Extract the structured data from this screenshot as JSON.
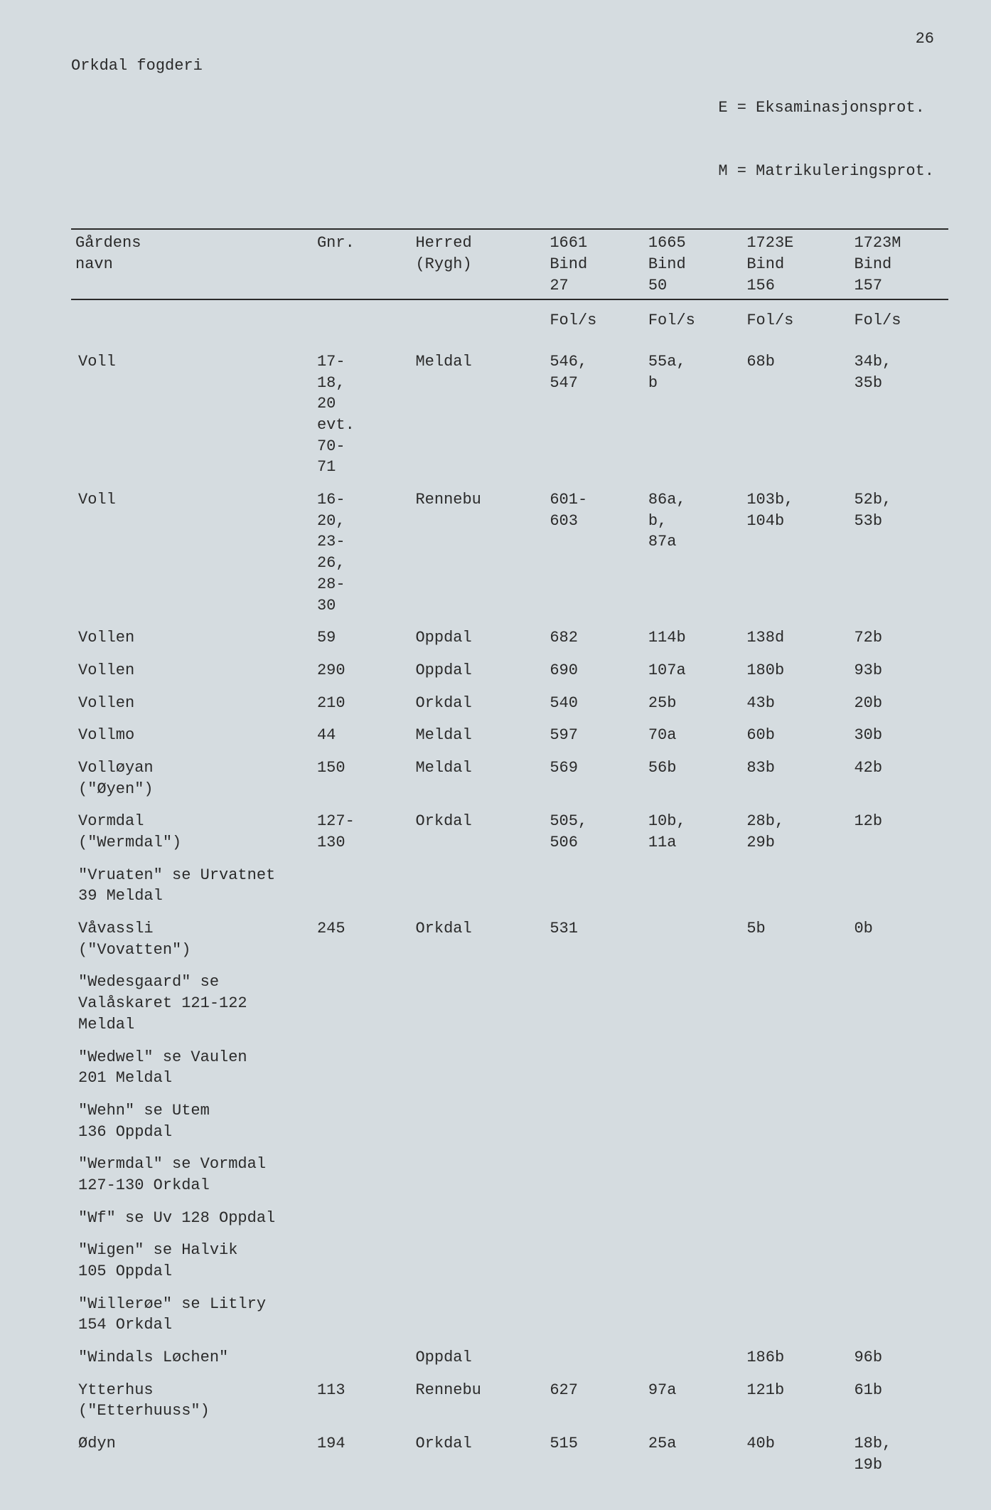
{
  "page_number": "26",
  "header": {
    "left": "Orkdal fogderi",
    "right_line1": "E = Eksaminasjonsprot.",
    "right_line2": "M = Matrikuleringsprot."
  },
  "table": {
    "columns": {
      "name": "Gårdens\nnavn",
      "gnr": "Gnr.",
      "herred": "Herred\n(Rygh)",
      "c1": "1661\nBind\n27",
      "c2": "1665\nBind\n50",
      "c3": "1723E\nBind\n156",
      "c4": "1723M\nBind\n157"
    },
    "fols_label": "Fol/s",
    "rows": [
      {
        "name": "Voll",
        "gnr": "17-\n18,\n20\nevt.\n70-\n71",
        "herred": "Meldal",
        "c1": "546,\n547",
        "c2": "55a,\nb",
        "c3": "68b",
        "c4": "34b,\n35b"
      },
      {
        "name": "Voll",
        "gnr": "16-\n20,\n23-\n26,\n28-\n30",
        "herred": "Rennebu",
        "c1": "601-\n603",
        "c2": "86a,\nb,\n87a",
        "c3": "103b,\n104b",
        "c4": "52b,\n53b"
      },
      {
        "name": "Vollen",
        "gnr": "59",
        "herred": "Oppdal",
        "c1": "682",
        "c2": "114b",
        "c3": "138d",
        "c4": "72b"
      },
      {
        "name": "Vollen",
        "gnr": "290",
        "herred": "Oppdal",
        "c1": "690",
        "c2": "107a",
        "c3": "180b",
        "c4": "93b"
      },
      {
        "name": "Vollen",
        "gnr": "210",
        "herred": "Orkdal",
        "c1": "540",
        "c2": "25b",
        "c3": "43b",
        "c4": "20b"
      },
      {
        "name": "Vollmo",
        "gnr": "44",
        "herred": "Meldal",
        "c1": "597",
        "c2": "70a",
        "c3": "60b",
        "c4": "30b"
      },
      {
        "name": "Volløyan\n(\"Øyen\")",
        "gnr": "150",
        "herred": "Meldal",
        "c1": "569",
        "c2": "56b",
        "c3": "83b",
        "c4": "42b"
      },
      {
        "name": "Vormdal\n(\"Wermdal\")",
        "gnr": "127-\n130",
        "herred": "Orkdal",
        "c1": "505,\n506",
        "c2": "10b,\n11a",
        "c3": "28b,\n29b",
        "c4": "12b"
      },
      {
        "name": "\"Vruaten\" se Urvatnet\n39 Meldal",
        "gnr": "",
        "herred": "",
        "c1": "",
        "c2": "",
        "c3": "",
        "c4": ""
      },
      {
        "name": "Våvassli\n(\"Vovatten\")",
        "gnr": "245",
        "herred": "Orkdal",
        "c1": "531",
        "c2": "",
        "c3": "5b",
        "c4": "0b"
      },
      {
        "name": "\"Wedesgaard\" se\nValåskaret 121-122\nMeldal",
        "gnr": "",
        "herred": "",
        "c1": "",
        "c2": "",
        "c3": "",
        "c4": ""
      },
      {
        "name": "\"Wedwel\" se Vaulen\n201 Meldal",
        "gnr": "",
        "herred": "",
        "c1": "",
        "c2": "",
        "c3": "",
        "c4": ""
      },
      {
        "name": "\"Wehn\" se Utem\n136 Oppdal",
        "gnr": "",
        "herred": "",
        "c1": "",
        "c2": "",
        "c3": "",
        "c4": ""
      },
      {
        "name": "\"Wermdal\" se Vormdal\n127-130 Orkdal",
        "gnr": "",
        "herred": "",
        "c1": "",
        "c2": "",
        "c3": "",
        "c4": ""
      },
      {
        "name": "\"Wf\" se Uv 128 Oppdal",
        "gnr": "",
        "herred": "",
        "c1": "",
        "c2": "",
        "c3": "",
        "c4": ""
      },
      {
        "name": "\"Wigen\" se Halvik\n105 Oppdal",
        "gnr": "",
        "herred": "",
        "c1": "",
        "c2": "",
        "c3": "",
        "c4": ""
      },
      {
        "name": "\"Willerøe\" se Litlry\n154 Orkdal",
        "gnr": "",
        "herred": "",
        "c1": "",
        "c2": "",
        "c3": "",
        "c4": ""
      },
      {
        "name": "\"Windals Løchen\"",
        "gnr": "",
        "herred": "Oppdal",
        "c1": "",
        "c2": "",
        "c3": "186b",
        "c4": "96b"
      },
      {
        "name": "Ytterhus\n(\"Etterhuuss\")",
        "gnr": "113",
        "herred": "Rennebu",
        "c1": "627",
        "c2": "97a",
        "c3": "121b",
        "c4": "61b"
      },
      {
        "name": "Ødyn",
        "gnr": "194",
        "herred": "Orkdal",
        "c1": "515",
        "c2": "25a",
        "c3": "40b",
        "c4": "18b,\n19b"
      }
    ]
  },
  "colors": {
    "background": "#d5dce0",
    "text": "#2a2a2a",
    "border": "#2a2a2a"
  }
}
